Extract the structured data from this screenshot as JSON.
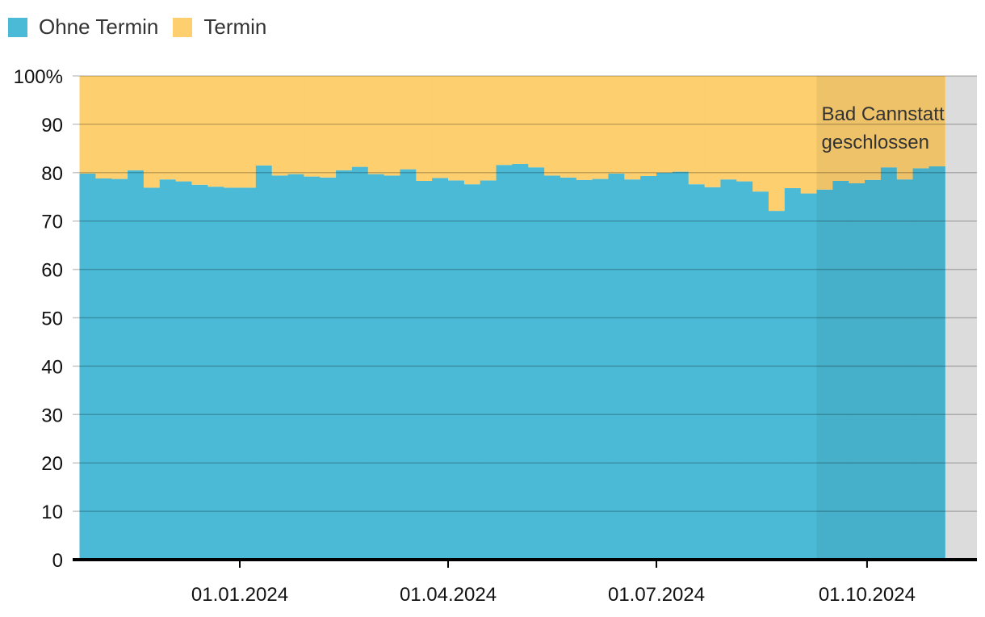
{
  "legend": [
    {
      "label": "Ohne Termin",
      "color": "#4BBAD6"
    },
    {
      "label": "Termin",
      "color": "#FDCF6F"
    }
  ],
  "annotation": {
    "line1": "Bad Cannstatt",
    "line2": "geschlossen"
  },
  "chart_data": {
    "type": "area",
    "stacked": true,
    "percent": true,
    "grid": true,
    "legend_position": "top-left",
    "ylim": [
      0,
      100
    ],
    "yticks": [
      "0",
      "10",
      "20",
      "30",
      "40",
      "50",
      "60",
      "70",
      "80",
      "90",
      "100%"
    ],
    "xticks": [
      "01.01.2024",
      "01.04.2024",
      "01.07.2024",
      "01.10.2024"
    ],
    "x": [
      "2023-10-23",
      "2023-10-30",
      "2023-11-06",
      "2023-11-13",
      "2023-11-20",
      "2023-11-27",
      "2023-12-04",
      "2023-12-11",
      "2023-12-18",
      "2023-12-25",
      "2024-01-01",
      "2024-01-08",
      "2024-01-15",
      "2024-01-22",
      "2024-01-29",
      "2024-02-05",
      "2024-02-12",
      "2024-02-19",
      "2024-02-26",
      "2024-03-04",
      "2024-03-11",
      "2024-03-18",
      "2024-03-25",
      "2024-04-01",
      "2024-04-08",
      "2024-04-15",
      "2024-04-22",
      "2024-04-29",
      "2024-05-06",
      "2024-05-13",
      "2024-05-20",
      "2024-05-27",
      "2024-06-03",
      "2024-06-10",
      "2024-06-17",
      "2024-06-24",
      "2024-07-01",
      "2024-07-08",
      "2024-07-15",
      "2024-07-22",
      "2024-07-29",
      "2024-08-05",
      "2024-08-12",
      "2024-08-19",
      "2024-08-26",
      "2024-09-02",
      "2024-09-09",
      "2024-09-16",
      "2024-09-23",
      "2024-09-30",
      "2024-10-07",
      "2024-10-14",
      "2024-10-21",
      "2024-10-28"
    ],
    "series": [
      {
        "name": "Ohne Termin",
        "color": "#4BBAD6",
        "values": [
          79.8,
          78.8,
          78.7,
          80.5,
          76.9,
          78.6,
          78.2,
          77.5,
          77.1,
          76.9,
          76.9,
          81.5,
          79.4,
          79.7,
          79.2,
          79.0,
          80.5,
          81.2,
          79.7,
          79.4,
          80.7,
          78.3,
          78.9,
          78.4,
          77.6,
          78.4,
          81.6,
          81.8,
          81.1,
          79.4,
          79.0,
          78.5,
          78.7,
          79.8,
          78.6,
          79.3,
          80.0,
          80.2,
          77.6,
          77.0,
          78.6,
          78.2,
          76.1,
          72.1,
          76.8,
          75.7,
          76.5,
          78.3,
          77.8,
          78.5,
          81.1,
          78.6,
          80.9,
          81.3
        ]
      },
      {
        "name": "Termin",
        "color": "#FDCF6F",
        "values": [
          20.2,
          21.2,
          21.3,
          19.5,
          23.1,
          21.4,
          21.8,
          22.5,
          22.9,
          23.1,
          23.1,
          18.5,
          20.6,
          20.3,
          20.8,
          21.0,
          19.5,
          18.8,
          20.3,
          20.6,
          19.3,
          21.7,
          21.1,
          21.6,
          22.4,
          21.6,
          18.4,
          18.2,
          18.9,
          20.6,
          21.0,
          21.5,
          21.3,
          20.2,
          21.4,
          20.7,
          20.0,
          19.8,
          22.4,
          23.0,
          21.4,
          21.8,
          23.9,
          27.9,
          23.2,
          24.3,
          23.5,
          21.7,
          22.2,
          21.5,
          18.9,
          21.4,
          19.1,
          18.7
        ]
      }
    ],
    "highlight_range": [
      "2024-09-09",
      "2024-10-28"
    ]
  }
}
